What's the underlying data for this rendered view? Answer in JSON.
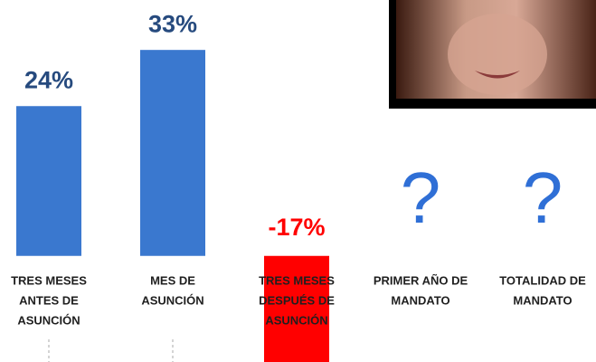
{
  "chart_data": {
    "type": "bar",
    "categories": [
      [
        "TRES MESES",
        "ANTES DE",
        "ASUNCIÓN"
      ],
      [
        "MES DE",
        "ASUNCIÓN"
      ],
      [
        "TRES MESES",
        "DESPUÉS DE",
        "ASUNCIÓN"
      ],
      [
        "PRIMER AÑO DE",
        "MANDATO"
      ],
      [
        "TOTALIDAD DE",
        "MANDATO"
      ]
    ],
    "values": [
      24,
      33,
      -17,
      null,
      null
    ],
    "value_labels": [
      "24%",
      "33%",
      "-17%",
      "?",
      "?"
    ],
    "color": "#3a78cf",
    "negative_color": "#ff0000",
    "label_color": "#264a7e",
    "unknown_color": "#2f6fd6",
    "ylim": [
      -17,
      41
    ]
  }
}
